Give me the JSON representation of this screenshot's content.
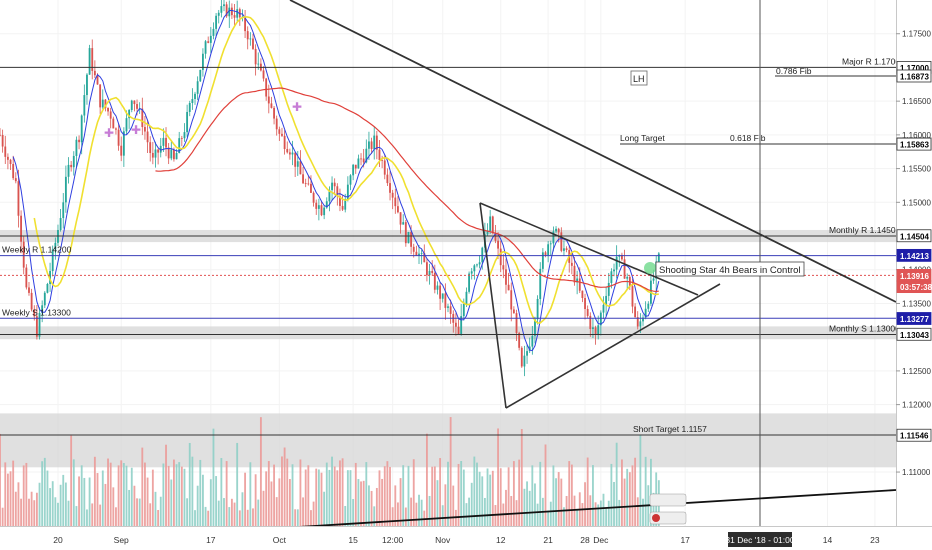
{
  "chart_data": {
    "type": "candlestick",
    "y_axis": {
      "position": "right",
      "range": [
        1.102,
        1.18
      ],
      "ticks": [
        "1.17500",
        "1.16500",
        "1.16000",
        "1.15500",
        "1.15000",
        "1.14000",
        "1.13500",
        "1.12500",
        "1.12000",
        "1.11000"
      ]
    },
    "x_axis": {
      "ticks": [
        {
          "label": "20",
          "day": 20
        },
        {
          "label": "Sep",
          "day": 32
        },
        {
          "label": "17",
          "day": 49
        },
        {
          "label": "Oct",
          "day": 62
        },
        {
          "label": "15",
          "day": 76
        },
        {
          "label": "12:00",
          "day": 83.5
        },
        {
          "label": "Nov",
          "day": 93
        },
        {
          "label": "12",
          "day": 104
        },
        {
          "label": "21",
          "day": 113
        },
        {
          "label": "28",
          "day": 120
        },
        {
          "label": "Dec",
          "day": 123
        },
        {
          "label": "17",
          "day": 139
        },
        {
          "label": "14",
          "day": 166
        },
        {
          "label": "23",
          "day": 175
        }
      ],
      "crosshair_date": "31 Dec '18 - 01:00"
    },
    "price_tags": [
      {
        "label": "1.17000",
        "value": 1.17,
        "style": "black"
      },
      {
        "label": "1.16873",
        "value": 1.16873,
        "style": "black"
      },
      {
        "label": "1.15865",
        "value": 1.15865,
        "style": "black"
      },
      {
        "label": "1.15863",
        "value": 1.15863,
        "style": "black"
      },
      {
        "label": "1.14504",
        "value": 1.14504,
        "style": "black"
      },
      {
        "label": "1.14213",
        "value": 1.14213,
        "style": "blue"
      },
      {
        "label": "1.13916",
        "value": 1.13916,
        "style": "red"
      },
      {
        "label": "03:57:38",
        "value": 1.1375,
        "style": "red"
      },
      {
        "label": "1.13277",
        "value": 1.13277,
        "style": "blue"
      },
      {
        "label": "1.13043",
        "value": 1.13043,
        "style": "black"
      },
      {
        "label": "1.11546",
        "value": 1.11546,
        "style": "black"
      }
    ],
    "horizontal_levels": [
      {
        "label": "Major R 1.1700",
        "value": 1.17,
        "color": "#333333"
      },
      {
        "label": "Monthly R 1.14500",
        "value": 1.145,
        "color": "#333333"
      },
      {
        "label": "Weekly R 1.14200",
        "value": 1.1421,
        "color": "#3a3fb8"
      },
      {
        "label": "Weekly S 1.13300",
        "value": 1.1328,
        "color": "#3a3fb8"
      },
      {
        "label": "Monthly S 1.13000",
        "value": 1.1304,
        "color": "#333333"
      },
      {
        "label": "Short Target 1.1157",
        "value": 1.1155,
        "color": "#333333"
      }
    ],
    "annotations": {
      "fib_0786": "0.786 Fib",
      "long_target": "Long Target",
      "fib_0618": "0.618 Fib",
      "lh": "LH",
      "shooting_star": "Shooting Star 4h Bears in Control"
    },
    "zones": [
      {
        "from": 1.1441,
        "to": 1.1459
      },
      {
        "from": 1.1297,
        "to": 1.1316
      },
      {
        "from": 1.1107,
        "to": 1.1187
      }
    ]
  }
}
